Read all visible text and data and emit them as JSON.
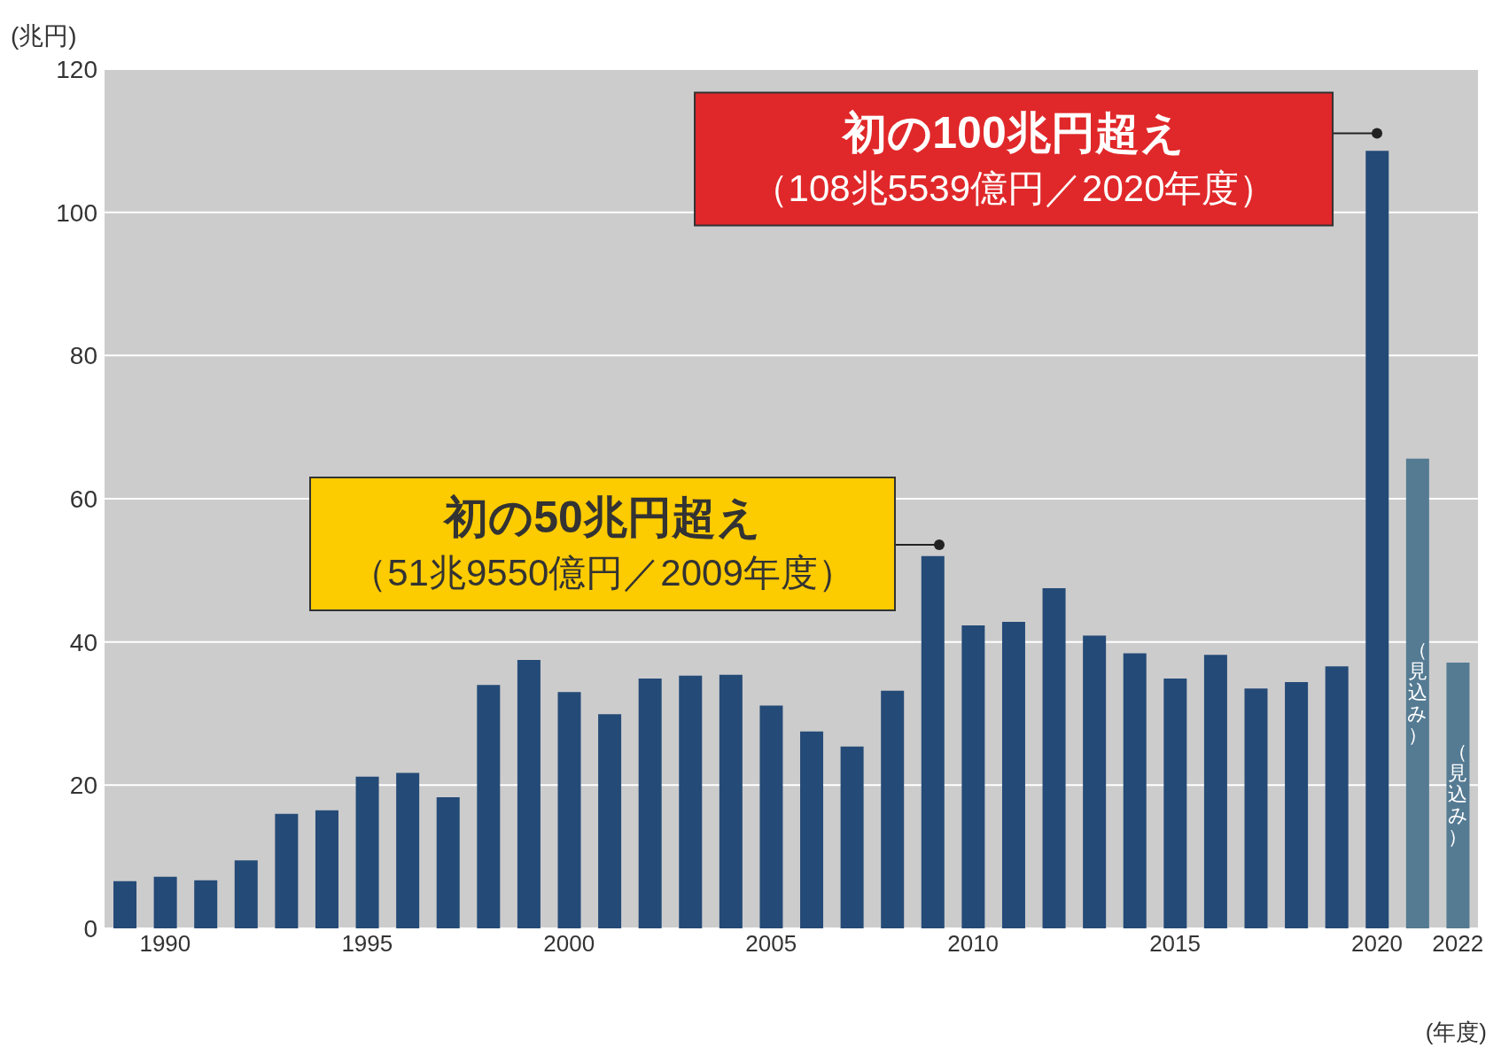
{
  "chart_data": {
    "type": "bar",
    "ylabel": "(兆円)",
    "xlabel": "(年度)",
    "categories": [
      null,
      "1990",
      null,
      null,
      null,
      null,
      "1995",
      null,
      null,
      null,
      null,
      "2000",
      null,
      null,
      null,
      null,
      "2005",
      null,
      null,
      null,
      null,
      "2010",
      null,
      null,
      null,
      null,
      "2015",
      null,
      null,
      null,
      null,
      "2020",
      null,
      "2022"
    ],
    "values": [
      6.6,
      7.2,
      6.7,
      9.5,
      16,
      16.5,
      21.2,
      21.7,
      18.3,
      34,
      37.5,
      33,
      29.9,
      34.9,
      35.3,
      35.4,
      31.1,
      27.5,
      25.4,
      33.2,
      52,
      42.3,
      42.8,
      47.5,
      40.9,
      38.4,
      34.9,
      38.2,
      33.5,
      34.4,
      36.6,
      108.6,
      65.6,
      37.1
    ],
    "colors": [
      "#244a77",
      "#244a77",
      "#244a77",
      "#244a77",
      "#244a77",
      "#244a77",
      "#244a77",
      "#244a77",
      "#244a77",
      "#244a77",
      "#244a77",
      "#244a77",
      "#244a77",
      "#244a77",
      "#244a77",
      "#244a77",
      "#244a77",
      "#244a77",
      "#244a77",
      "#244a77",
      "#244a77",
      "#244a77",
      "#244a77",
      "#244a77",
      "#244a77",
      "#244a77",
      "#244a77",
      "#244a77",
      "#244a77",
      "#244a77",
      "#244a77",
      "#244a77",
      "#557b93",
      "#557b93"
    ],
    "value_labels": [
      null,
      null,
      null,
      null,
      null,
      null,
      null,
      null,
      null,
      null,
      null,
      null,
      null,
      null,
      null,
      null,
      null,
      null,
      null,
      null,
      null,
      null,
      null,
      null,
      null,
      null,
      null,
      null,
      null,
      null,
      null,
      null,
      "（見込み）",
      "（見込み）"
    ],
    "ylim": [
      0,
      120
    ],
    "yticks": [
      0,
      20,
      40,
      60,
      80,
      100,
      120
    ],
    "grid": "y",
    "annotations": [
      "初の100兆円超え",
      {
        "text": "（108兆5539億円／2020年度）",
        "x": "2020",
        "y": 108.5539
      },
      "初の50兆円超え",
      "（51兆9550億円／2009年度）"
    ]
  }
}
